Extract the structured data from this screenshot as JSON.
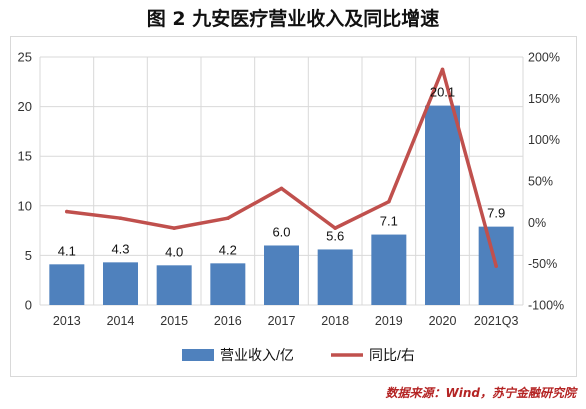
{
  "chart_data": {
    "type": "bar",
    "title": "图 2  九安医疗营业收入及同比增速",
    "categories": [
      "2013",
      "2014",
      "2015",
      "2016",
      "2017",
      "2018",
      "2019",
      "2020",
      "2021Q3"
    ],
    "series": [
      {
        "name": "营业收入/亿",
        "type": "bar",
        "axis": "left",
        "values": [
          4.1,
          4.3,
          4.0,
          4.2,
          6.0,
          5.6,
          7.1,
          20.1,
          7.9
        ],
        "labels": [
          "4.1",
          "4.3",
          "4.0",
          "4.2",
          "6.0",
          "5.6",
          "7.1",
          "20.1",
          "7.9"
        ]
      },
      {
        "name": "同比/右",
        "type": "line",
        "axis": "right",
        "values": [
          13,
          5,
          -7,
          5,
          41,
          -7,
          25,
          185,
          -53
        ]
      }
    ],
    "y_left": {
      "min": 0,
      "max": 25,
      "ticks": [
        "0",
        "5",
        "10",
        "15",
        "20",
        "25"
      ]
    },
    "y_right": {
      "min": -100,
      "max": 200,
      "ticks": [
        "-100%",
        "-50%",
        "0%",
        "50%",
        "100%",
        "150%",
        "200%"
      ]
    },
    "legend_position": "bottom",
    "colors": {
      "bar": "#4f81bd",
      "line": "#c0504d"
    }
  },
  "source": "数据来源：Wind，苏宁金融研究院"
}
